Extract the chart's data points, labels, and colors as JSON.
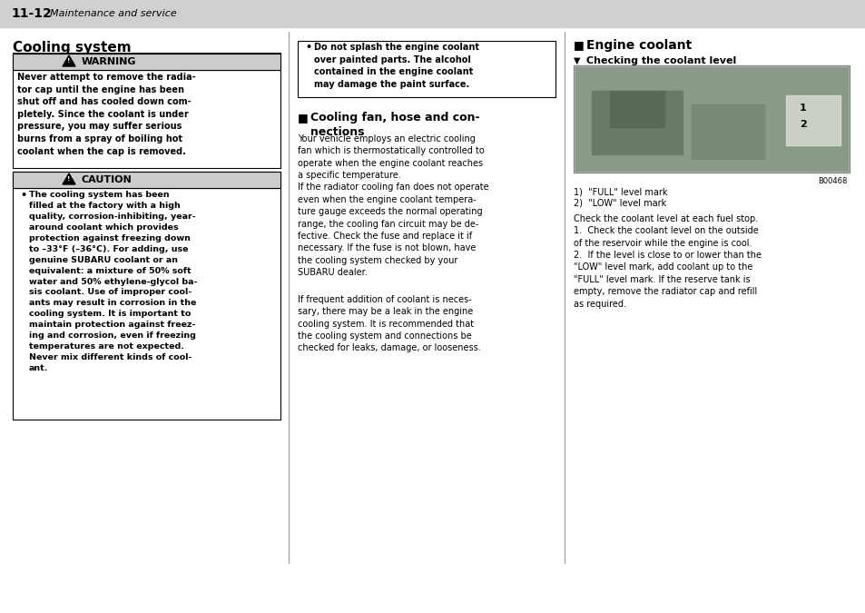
{
  "page_header": "11-12",
  "page_header_italic": "Maintenance and service",
  "bg_color": "#ffffff",
  "header_bar_color": "#d0d0d0",
  "section_title": "Cooling system",
  "warning_text": "Never attempt to remove the radia-\ntor cap until the engine has been\nshut off and has cooled down com-\npletely. Since the coolant is under\npressure, you may suffer serious\nburns from a spray of boiling hot\ncoolant when the cap is removed.",
  "caution_bullet": "The cooling system has been\nfilled at the factory with a high\nquality, corrosion-inhibiting, year-\naround coolant which provides\nprotection against freezing down\nto –33°F (–36°C). For adding, use\ngenuine SUBARU coolant or an\nequivalent: a mixture of 50% soft\nwater and 50% ethylene-glycol ba-\nsis coolant. Use of improper cool-\nants may result in corrosion in the\ncooling system. It is important to\nmaintain protection against freez-\ning and corrosion, even if freezing\ntemperatures are not expected.\nNever mix different kinds of cool-\nant.",
  "col2_bullet1": "Do not splash the engine coolant\nover painted parts. The alcohol\ncontained in the engine coolant\nmay damage the paint surface.",
  "col2_section_title": "Cooling fan, hose and con-\nnections",
  "col2_para1": "Your vehicle employs an electric cooling\nfan which is thermostatically controlled to\noperate when the engine coolant reaches\na specific temperature.\nIf the radiator cooling fan does not operate\neven when the engine coolant tempera-\nture gauge exceeds the normal operating\nrange, the cooling fan circuit may be de-\nfective. Check the fuse and replace it if\nnecessary. If the fuse is not blown, have\nthe cooling system checked by your\nSUBARU dealer.",
  "col2_para2": "If frequent addition of coolant is neces-\nsary, there may be a leak in the engine\ncooling system. It is recommended that\nthe cooling system and connections be\nchecked for leaks, damage, or looseness.",
  "col3_section_title": "Engine coolant",
  "col3_subsection": "Checking the coolant level",
  "col3_caption1": "1)  \"FULL\" level mark",
  "col3_caption2": "2)  \"LOW\" level mark",
  "col3_para": "Check the coolant level at each fuel stop.\n1.  Check the coolant level on the outside\nof the reservoir while the engine is cool.\n2.  If the level is close to or lower than the\n\"LOW\" level mark, add coolant up to the\n\"FULL\" level mark. If the reserve tank is\nempty, remove the radiator cap and refill\nas required.",
  "image_ref": "B00468",
  "separator_color": "#999999"
}
